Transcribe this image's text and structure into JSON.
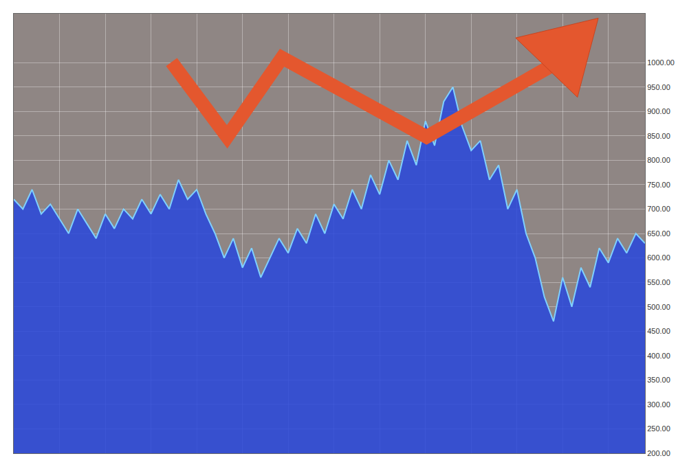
{
  "chart_data": {
    "type": "line",
    "x": [
      0,
      1,
      2,
      3,
      4,
      5,
      6,
      7,
      8,
      9,
      10,
      11,
      12,
      13,
      14,
      15,
      16,
      17,
      18,
      19,
      20,
      21,
      22,
      23,
      24,
      25,
      26,
      27,
      28,
      29,
      30,
      31,
      32,
      33,
      34,
      35,
      36,
      37,
      38,
      39,
      40,
      41,
      42,
      43,
      44,
      45,
      46,
      47,
      48,
      49,
      50,
      51,
      52,
      53,
      54,
      55,
      56,
      57,
      58,
      59,
      60,
      61,
      62,
      63,
      64,
      65,
      66,
      67,
      68,
      69
    ],
    "values": [
      720,
      700,
      740,
      690,
      710,
      680,
      650,
      700,
      670,
      640,
      690,
      660,
      700,
      680,
      720,
      690,
      730,
      700,
      760,
      720,
      740,
      690,
      650,
      600,
      640,
      580,
      620,
      560,
      600,
      640,
      610,
      660,
      630,
      690,
      650,
      710,
      680,
      740,
      700,
      770,
      730,
      800,
      760,
      840,
      790,
      880,
      830,
      920,
      950,
      870,
      820,
      840,
      760,
      790,
      700,
      740,
      650,
      600,
      520,
      470,
      560,
      500,
      580,
      540,
      620,
      590,
      640,
      610,
      650,
      630
    ],
    "color": "#7fd0ff",
    "xlim": [
      0,
      69
    ],
    "xticks": [
      0,
      5,
      10,
      15,
      20,
      25,
      30,
      35,
      40,
      45,
      50,
      55,
      60,
      65
    ],
    "ylim": [
      200,
      1100
    ],
    "yticks": [
      {
        "value": 200,
        "label": "200.00"
      },
      {
        "value": 250,
        "label": "250.00"
      },
      {
        "value": 300,
        "label": "300.00"
      },
      {
        "value": 350,
        "label": "350.00"
      },
      {
        "value": 400,
        "label": "400.00"
      },
      {
        "value": 450,
        "label": "450.00"
      },
      {
        "value": 500,
        "label": "500.00"
      },
      {
        "value": 550,
        "label": "550.00"
      },
      {
        "value": 600,
        "label": "600.00"
      },
      {
        "value": 650,
        "label": "650.00"
      },
      {
        "value": 700,
        "label": "700.00"
      },
      {
        "value": 750,
        "label": "750.00"
      },
      {
        "value": 800,
        "label": "800.00"
      },
      {
        "value": 850,
        "label": "850.00"
      },
      {
        "value": 900,
        "label": "900.00"
      },
      {
        "value": 950,
        "label": "950.00"
      },
      {
        "value": 1000,
        "label": "1000.00"
      }
    ],
    "grid": true,
    "tick_labels": "y"
  }
}
